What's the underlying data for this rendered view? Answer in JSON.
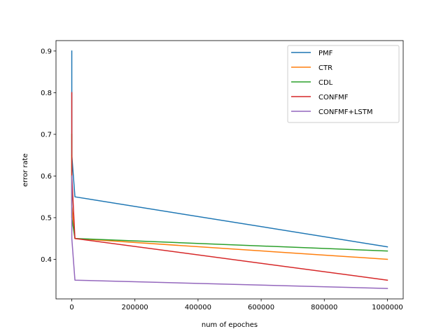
{
  "chart_data": {
    "type": "line",
    "title": "",
    "xlabel": "num of epoches",
    "ylabel": "error rate",
    "xlim": [
      -50000,
      1050000
    ],
    "ylim": [
      0.305,
      0.925
    ],
    "xticks": [
      0,
      200000,
      400000,
      600000,
      800000,
      1000000
    ],
    "xtick_labels": [
      "0",
      "200000",
      "400000",
      "600000",
      "800000",
      "1000000"
    ],
    "yticks": [
      0.4,
      0.5,
      0.6,
      0.7,
      0.8,
      0.9
    ],
    "ytick_labels": [
      "0.4",
      "0.5",
      "0.6",
      "0.7",
      "0.8",
      "0.9"
    ],
    "grid": false,
    "legend_position": "top-right",
    "series": [
      {
        "name": "PMF",
        "color": "#1f77b4",
        "x": [
          1,
          100,
          10000,
          1000000
        ],
        "y": [
          0.9,
          0.65,
          0.55,
          0.43
        ]
      },
      {
        "name": "CTR",
        "color": "#ff7f0e",
        "x": [
          1,
          100,
          10000,
          1000000
        ],
        "y": [
          0.65,
          0.53,
          0.45,
          0.4
        ]
      },
      {
        "name": "CDL",
        "color": "#2ca02c",
        "x": [
          1,
          100,
          10000,
          1000000
        ],
        "y": [
          0.7,
          0.5,
          0.45,
          0.42
        ]
      },
      {
        "name": "CONFMF",
        "color": "#d62728",
        "x": [
          1,
          100,
          10000,
          1000000
        ],
        "y": [
          0.8,
          0.6,
          0.45,
          0.35
        ]
      },
      {
        "name": "CONFMF+LSTM",
        "color": "#9467bd",
        "x": [
          1,
          100,
          10000,
          1000000
        ],
        "y": [
          0.6,
          0.45,
          0.35,
          0.33
        ]
      }
    ]
  }
}
